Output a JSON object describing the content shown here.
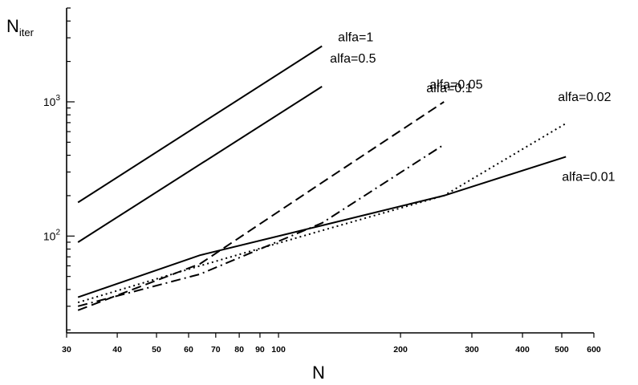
{
  "chart_data": {
    "type": "line",
    "xlabel": "N",
    "ylabel_main": "N",
    "ylabel_sub": "iter",
    "x_scale": "log",
    "y_scale": "log",
    "xlim": [
      30,
      600
    ],
    "ylim": [
      19,
      5000
    ],
    "grid": false,
    "x_ticks": [
      30,
      40,
      50,
      60,
      70,
      80,
      90,
      100,
      200,
      300,
      400,
      500,
      600
    ],
    "x_tick_labels": [
      "30",
      "40",
      "50",
      "60",
      "70",
      "80",
      "90",
      "100",
      "200",
      "300",
      "400",
      "500",
      "600"
    ],
    "y_major_ticks": [
      {
        "value": 100,
        "base": "10",
        "exp": "2"
      },
      {
        "value": 1000,
        "base": "10",
        "exp": "3"
      }
    ],
    "series": [
      {
        "name": "alfa=1",
        "dash": "solid",
        "x": [
          32,
          128
        ],
        "y": [
          178,
          2600
        ]
      },
      {
        "name": "alfa=0.5",
        "dash": "solid",
        "x": [
          32,
          128
        ],
        "y": [
          90,
          1300
        ]
      },
      {
        "name": "alfa=0.1",
        "dash": "dashed",
        "x": [
          32,
          64,
          128,
          256
        ],
        "y": [
          28,
          62,
          250,
          1000
        ]
      },
      {
        "name": "alfa=0.05",
        "dash": "dashdot",
        "x": [
          32,
          64,
          128,
          256
        ],
        "y": [
          30,
          52,
          125,
          480
        ]
      },
      {
        "name": "alfa=0.02",
        "dash": "dotted",
        "x": [
          32,
          64,
          128,
          256,
          512
        ],
        "y": [
          32,
          60,
          110,
          200,
          690
        ]
      },
      {
        "name": "alfa=0.01",
        "dash": "solid",
        "x": [
          32,
          64,
          128,
          256,
          512
        ],
        "y": [
          35,
          72,
          120,
          200,
          390
        ]
      }
    ]
  }
}
